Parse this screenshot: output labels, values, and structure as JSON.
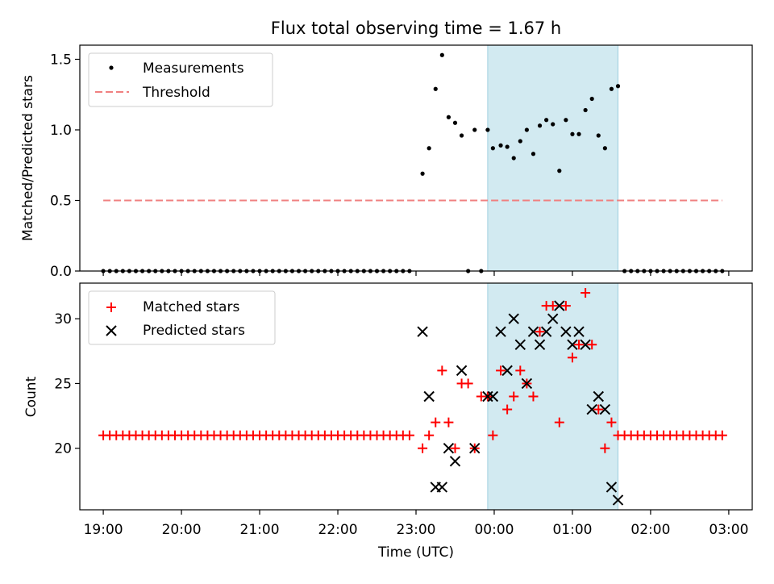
{
  "chart_data": {
    "title": "Flux total observing time = 1.67 h",
    "xlabel": "Time (UTC)",
    "x_ticks": [
      "19:00",
      "20:00",
      "21:00",
      "22:00",
      "23:00",
      "00:00",
      "01:00",
      "02:00",
      "03:00"
    ],
    "shaded_region": {
      "x_start": "23:55",
      "x_end": "01:35",
      "color": "#add8e6"
    },
    "panels": [
      {
        "type": "scatter",
        "ylabel": "Matched/Predicted stars",
        "ylim": [
          0,
          1.6
        ],
        "y_ticks": [
          "0.0",
          "0.5",
          "1.0",
          "1.5"
        ],
        "legend_position": "top-left",
        "legend": [
          "Measurements",
          "Threshold"
        ],
        "series": [
          {
            "name": "Measurements",
            "marker": "dot",
            "color": "#000000",
            "x": [
              "19:00",
              "19:05",
              "19:10",
              "19:15",
              "19:20",
              "19:25",
              "19:30",
              "19:35",
              "19:40",
              "19:45",
              "19:50",
              "19:55",
              "20:00",
              "20:05",
              "20:10",
              "20:15",
              "20:20",
              "20:25",
              "20:30",
              "20:35",
              "20:40",
              "20:45",
              "20:50",
              "20:55",
              "21:00",
              "21:05",
              "21:10",
              "21:15",
              "21:20",
              "21:25",
              "21:30",
              "21:35",
              "21:40",
              "21:45",
              "21:50",
              "21:55",
              "22:00",
              "22:05",
              "22:10",
              "22:15",
              "22:20",
              "22:25",
              "22:30",
              "22:35",
              "22:40",
              "22:45",
              "22:50",
              "22:55",
              "23:05",
              "23:10",
              "23:15",
              "23:20",
              "23:25",
              "23:30",
              "23:35",
              "23:40",
              "23:45",
              "23:50",
              "23:55",
              "23:59",
              "00:05",
              "00:10",
              "00:15",
              "00:20",
              "00:25",
              "00:30",
              "00:35",
              "00:40",
              "00:45",
              "00:50",
              "00:55",
              "01:00",
              "01:05",
              "01:10",
              "01:15",
              "01:20",
              "01:25",
              "01:30",
              "01:35",
              "01:40",
              "01:45",
              "01:50",
              "01:55",
              "02:00",
              "02:05",
              "02:10",
              "02:15",
              "02:20",
              "02:25",
              "02:30",
              "02:35",
              "02:40",
              "02:45",
              "02:50",
              "02:55"
            ],
            "y": [
              0,
              0,
              0,
              0,
              0,
              0,
              0,
              0,
              0,
              0,
              0,
              0,
              0,
              0,
              0,
              0,
              0,
              0,
              0,
              0,
              0,
              0,
              0,
              0,
              0,
              0,
              0,
              0,
              0,
              0,
              0,
              0,
              0,
              0,
              0,
              0,
              0,
              0,
              0,
              0,
              0,
              0,
              0,
              0,
              0,
              0,
              0,
              0,
              0.69,
              0.87,
              1.29,
              1.53,
              1.09,
              1.05,
              0.96,
              0,
              1.0,
              0,
              1.0,
              0.87,
              0.89,
              0.88,
              0.8,
              0.92,
              1.0,
              0.83,
              1.03,
              1.07,
              1.04,
              0.71,
              1.07,
              0.97,
              0.97,
              1.14,
              1.22,
              0.96,
              0.87,
              1.29,
              1.31,
              0,
              0,
              0,
              0,
              0,
              0,
              0,
              0,
              0,
              0,
              0,
              0,
              0,
              0,
              0,
              0
            ]
          },
          {
            "name": "Threshold",
            "style": "dashed",
            "color": "#f08080",
            "x": [
              "19:00",
              "02:55"
            ],
            "y": [
              0.5,
              0.5
            ]
          }
        ]
      },
      {
        "type": "scatter",
        "ylabel": "Count",
        "ylim": [
          15.25,
          32.75
        ],
        "y_ticks": [
          "20",
          "25",
          "30"
        ],
        "legend_position": "top-left",
        "legend": [
          "Matched stars",
          "Predicted stars"
        ],
        "series": [
          {
            "name": "Matched stars",
            "marker": "plus",
            "color": "#ff0000",
            "x": [
              "19:00",
              "19:05",
              "19:10",
              "19:15",
              "19:20",
              "19:25",
              "19:30",
              "19:35",
              "19:40",
              "19:45",
              "19:50",
              "19:55",
              "20:00",
              "20:05",
              "20:10",
              "20:15",
              "20:20",
              "20:25",
              "20:30",
              "20:35",
              "20:40",
              "20:45",
              "20:50",
              "20:55",
              "21:00",
              "21:05",
              "21:10",
              "21:15",
              "21:20",
              "21:25",
              "21:30",
              "21:35",
              "21:40",
              "21:45",
              "21:50",
              "21:55",
              "22:00",
              "22:05",
              "22:10",
              "22:15",
              "22:20",
              "22:25",
              "22:30",
              "22:35",
              "22:40",
              "22:45",
              "22:50",
              "22:55",
              "23:05",
              "23:10",
              "23:15",
              "23:20",
              "23:25",
              "23:30",
              "23:35",
              "23:40",
              "23:45",
              "23:50",
              "23:55",
              "23:59",
              "00:05",
              "00:10",
              "00:15",
              "00:20",
              "00:25",
              "00:30",
              "00:35",
              "00:40",
              "00:45",
              "00:50",
              "00:55",
              "01:00",
              "01:05",
              "01:10",
              "01:15",
              "01:20",
              "01:25",
              "01:30",
              "01:35",
              "01:40",
              "01:45",
              "01:50",
              "01:55",
              "02:00",
              "02:05",
              "02:10",
              "02:15",
              "02:20",
              "02:25",
              "02:30",
              "02:35",
              "02:40",
              "02:45",
              "02:50",
              "02:55"
            ],
            "y": [
              21,
              21,
              21,
              21,
              21,
              21,
              21,
              21,
              21,
              21,
              21,
              21,
              21,
              21,
              21,
              21,
              21,
              21,
              21,
              21,
              21,
              21,
              21,
              21,
              21,
              21,
              21,
              21,
              21,
              21,
              21,
              21,
              21,
              21,
              21,
              21,
              21,
              21,
              21,
              21,
              21,
              21,
              21,
              21,
              21,
              21,
              21,
              21,
              20,
              21,
              22,
              26,
              22,
              20,
              25,
              25,
              20,
              24,
              24,
              21,
              26,
              23,
              24,
              26,
              25,
              24,
              29,
              31,
              31,
              22,
              31,
              27,
              28,
              32,
              28,
              23,
              20,
              22,
              21,
              21,
              21,
              21,
              21,
              21,
              21,
              21,
              21,
              21,
              21,
              21,
              21,
              21,
              21,
              21,
              21
            ]
          },
          {
            "name": "Predicted stars",
            "marker": "x",
            "color": "#000000",
            "x": [
              "23:05",
              "23:10",
              "23:15",
              "23:20",
              "23:25",
              "23:30",
              "23:35",
              "23:45",
              "23:55",
              "23:59",
              "00:05",
              "00:10",
              "00:15",
              "00:20",
              "00:25",
              "00:30",
              "00:35",
              "00:40",
              "00:45",
              "00:50",
              "00:55",
              "01:00",
              "01:05",
              "01:10",
              "01:15",
              "01:20",
              "01:25",
              "01:30",
              "01:35"
            ],
            "y": [
              29,
              24,
              17,
              17,
              20,
              19,
              26,
              20,
              24,
              24,
              29,
              26,
              30,
              28,
              25,
              29,
              28,
              29,
              30,
              31,
              29,
              28,
              29,
              28,
              23,
              24,
              23,
              17,
              16
            ]
          }
        ]
      }
    ]
  }
}
